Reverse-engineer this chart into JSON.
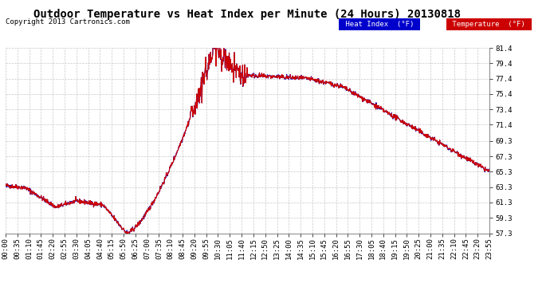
{
  "title": "Outdoor Temperature vs Heat Index per Minute (24 Hours) 20130818",
  "copyright_text": "Copyright 2013 Cartronics.com",
  "legend_labels": [
    "Heat Index  (°F)",
    "Temperature  (°F)"
  ],
  "legend_colors": [
    "#0000dd",
    "#cc0000"
  ],
  "ylim": [
    57.3,
    81.4
  ],
  "yticks": [
    57.3,
    59.3,
    61.3,
    63.3,
    65.3,
    67.3,
    69.3,
    71.4,
    73.4,
    75.4,
    77.4,
    79.4,
    81.4
  ],
  "xtick_labels": [
    "00:00",
    "00:35",
    "01:10",
    "01:45",
    "02:20",
    "02:55",
    "03:30",
    "04:05",
    "04:40",
    "05:15",
    "05:50",
    "06:25",
    "07:00",
    "07:35",
    "08:10",
    "08:45",
    "09:20",
    "09:55",
    "10:30",
    "11:05",
    "11:40",
    "12:15",
    "12:50",
    "13:25",
    "14:00",
    "14:35",
    "15:10",
    "15:45",
    "16:20",
    "16:55",
    "17:30",
    "18:05",
    "18:40",
    "19:15",
    "19:50",
    "20:25",
    "21:00",
    "21:35",
    "22:10",
    "22:45",
    "23:20",
    "23:55"
  ],
  "line_color_temp": "#cc0000",
  "line_color_heat": "#0000cc",
  "grid_color": "#bbbbbb",
  "bg_color": "#ffffff",
  "title_fontsize": 10,
  "axis_fontsize": 6.5,
  "copyright_fontsize": 6.5
}
